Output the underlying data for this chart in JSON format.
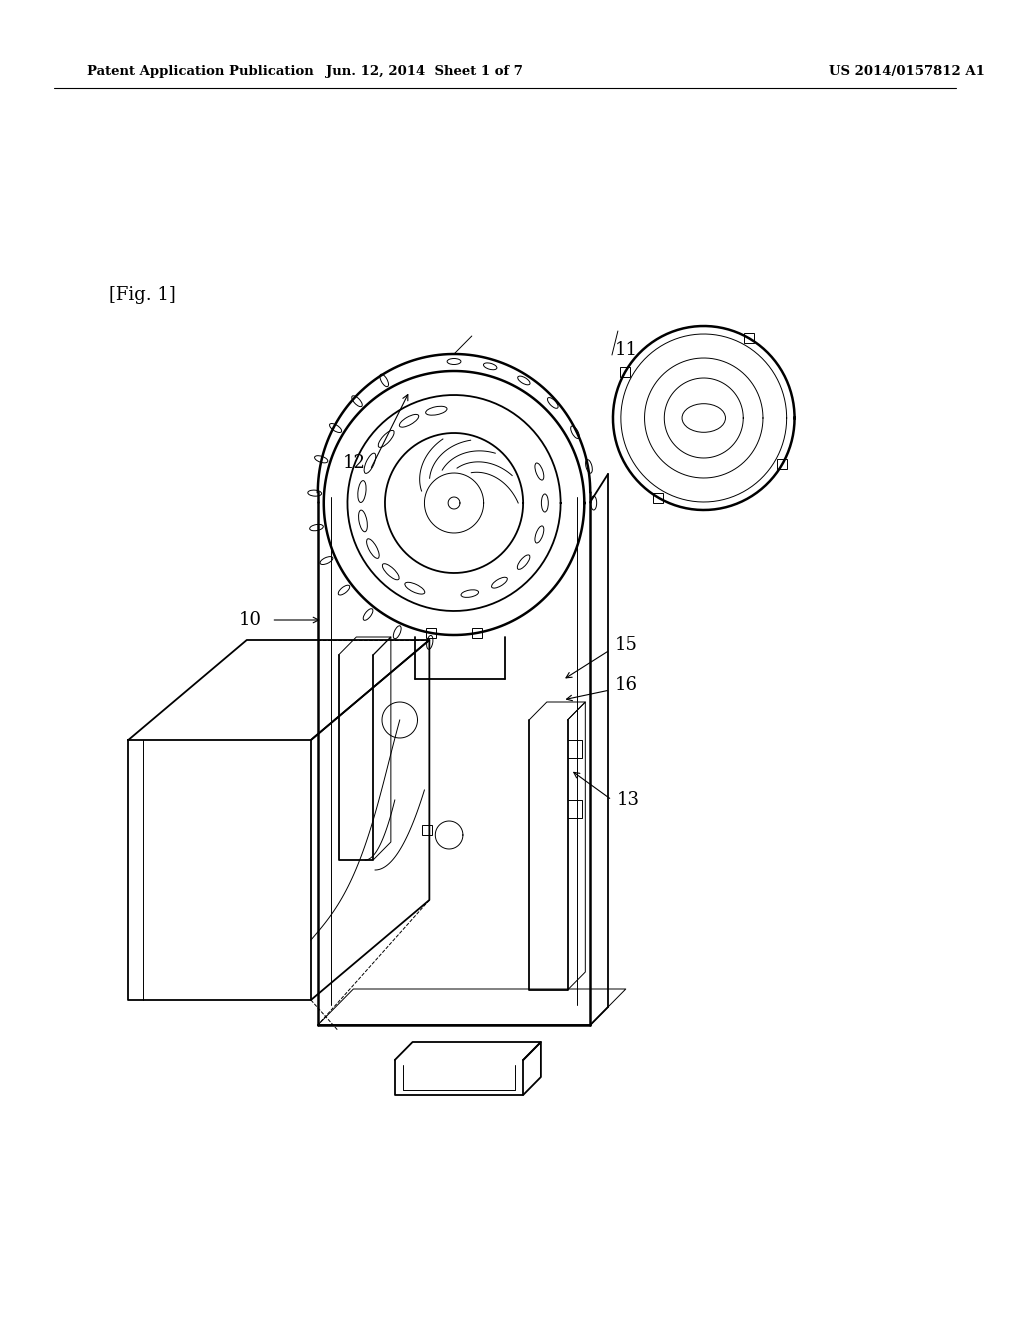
{
  "background_color": "#ffffff",
  "header_left": "Patent Application Publication",
  "header_mid": "Jun. 12, 2014  Sheet 1 of 7",
  "header_right": "US 2014/0157812 A1",
  "fig_label": "[Fig. 1]",
  "lw_main": 1.3,
  "lw_thin": 0.7,
  "lw_thick": 1.8
}
